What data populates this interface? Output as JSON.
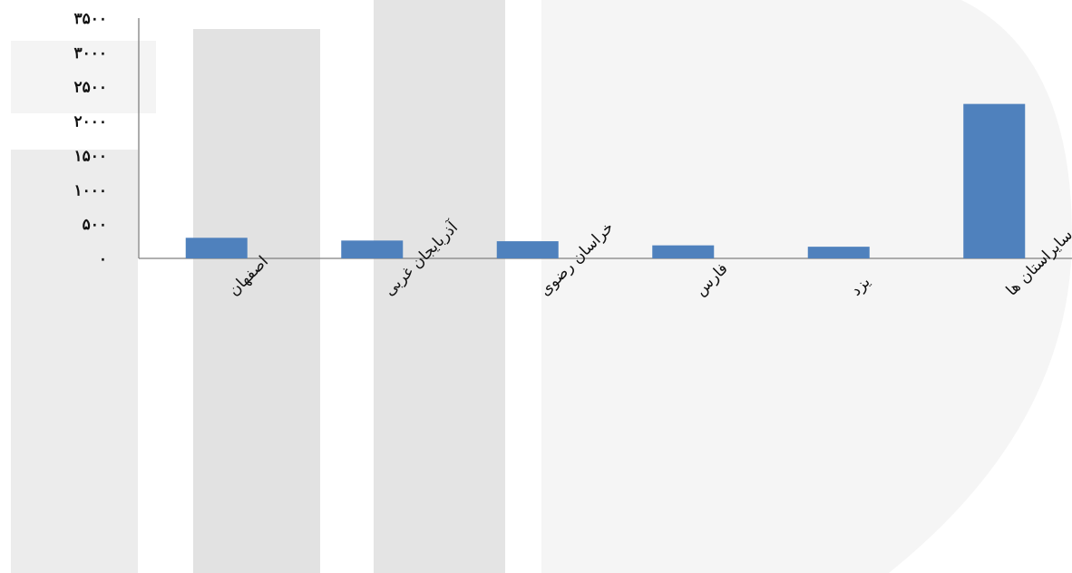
{
  "chart_data": {
    "type": "bar",
    "categories": [
      "اصفهان",
      "آذربایجان غربی",
      "خراسان رضوی",
      "فارس",
      "یزد",
      "سایراستان ها"
    ],
    "values": [
      300,
      260,
      250,
      190,
      170,
      2250
    ],
    "ylim": [
      0,
      3500
    ],
    "y_ticks": [
      0,
      500,
      1000,
      1500,
      2000,
      2500,
      3000,
      3500
    ],
    "y_tick_labels": [
      "۰",
      "۵۰۰",
      "۱۰۰۰",
      "۱۵۰۰",
      "۲۰۰۰",
      "۲۵۰۰",
      "۳۰۰۰",
      "۳۵۰۰"
    ],
    "grid": false,
    "bar_color": "#4F81BD",
    "title": "",
    "xlabel": "",
    "ylabel": ""
  },
  "watermark": {
    "color": "#e6e6e6"
  }
}
